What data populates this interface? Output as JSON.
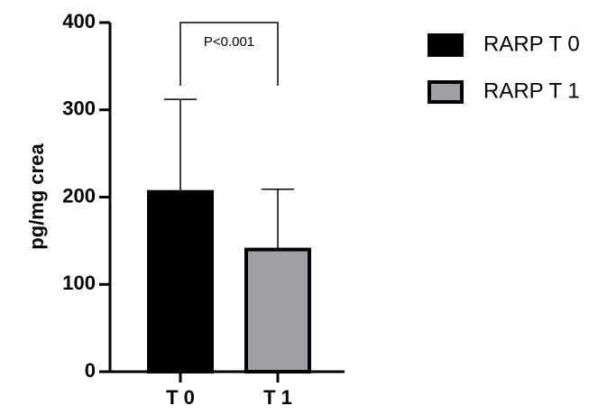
{
  "chart_data": {
    "type": "bar",
    "y_label": "pg/mg crea",
    "categories": [
      "T 0",
      "T 1"
    ],
    "series": [
      {
        "name": "RARP T 0",
        "color": "#000000",
        "values": [
          206,
          null
        ],
        "errors": [
          106,
          null
        ]
      },
      {
        "name": "RARP T 1",
        "color": "#a0a0a4",
        "values": [
          null,
          140
        ],
        "errors": [
          null,
          69
        ]
      }
    ],
    "ylim": [
      0,
      400
    ],
    "yticks": [
      0,
      100,
      200,
      300,
      400
    ],
    "annotation": "P<0.001"
  }
}
